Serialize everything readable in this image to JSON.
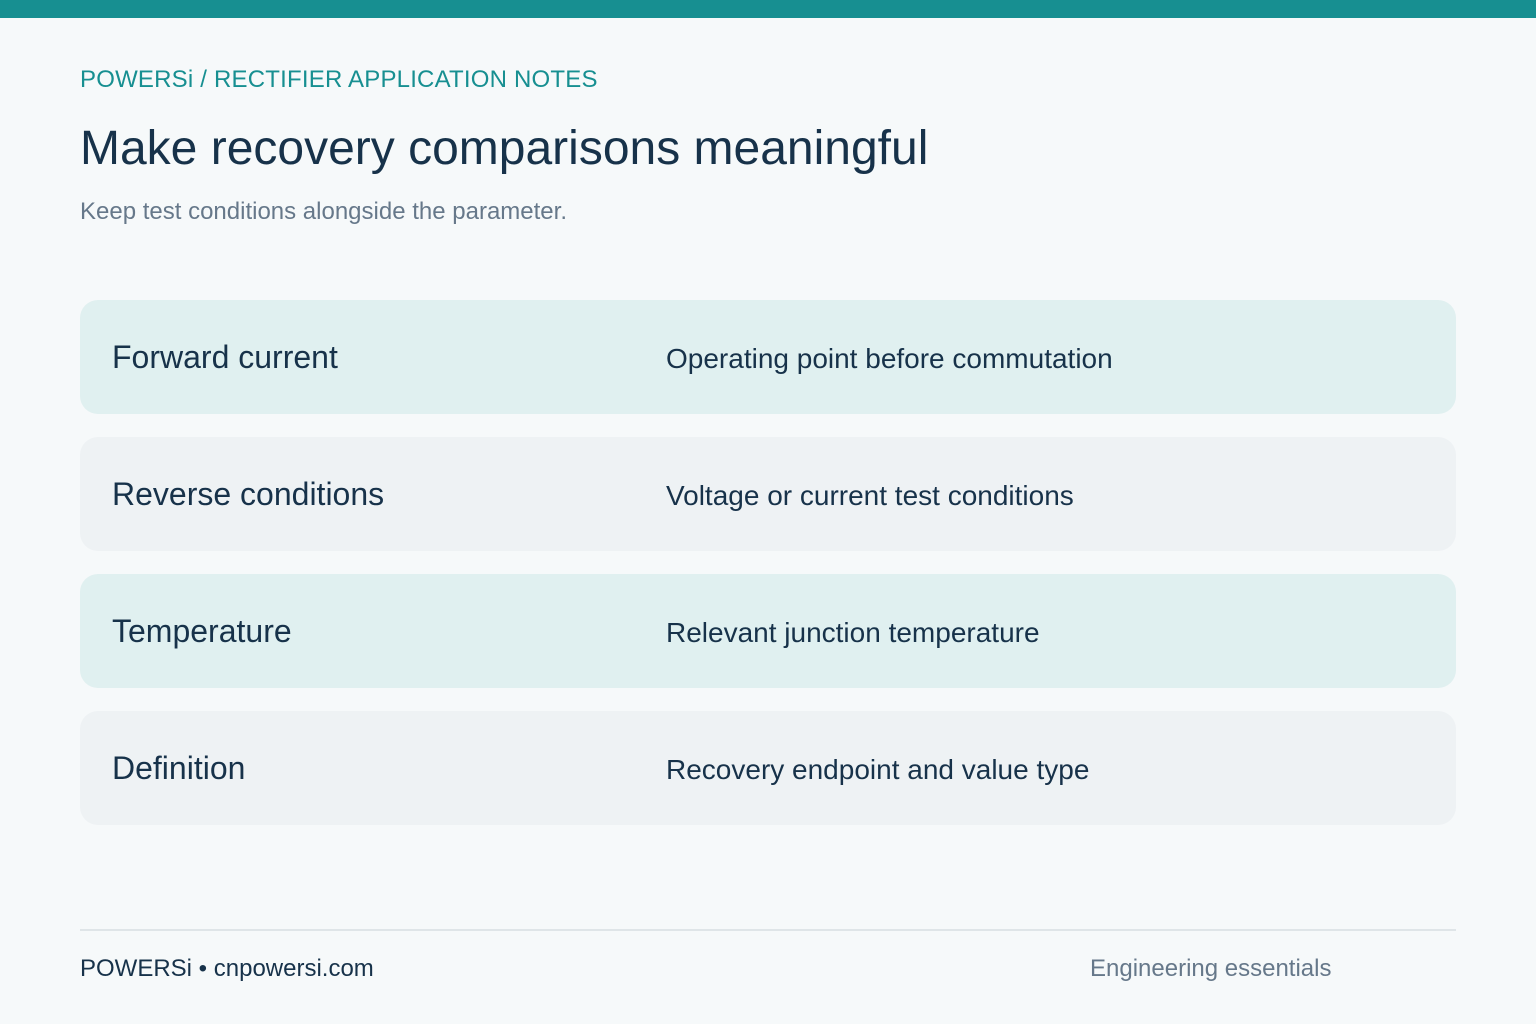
{
  "header": {
    "breadcrumb": "POWERSi / RECTIFIER APPLICATION NOTES",
    "title": "Make recovery comparisons meaningful",
    "subtitle": "Keep test conditions alongside the parameter."
  },
  "rows": [
    {
      "label": "Forward current",
      "description": "Operating point before commutation"
    },
    {
      "label": "Reverse conditions",
      "description": "Voltage or current test conditions"
    },
    {
      "label": "Temperature",
      "description": "Relevant junction temperature"
    },
    {
      "label": "Definition",
      "description": "Recovery endpoint and value type"
    }
  ],
  "footer": {
    "left": "POWERSi • cnpowersi.com",
    "right": "Engineering essentials"
  },
  "colors": {
    "accent": "#178f91",
    "text": "#17324a",
    "muted": "#66788a",
    "row_teal": "#e0f0f0",
    "row_gray": "#eef2f4",
    "background": "#f6f9fa"
  }
}
